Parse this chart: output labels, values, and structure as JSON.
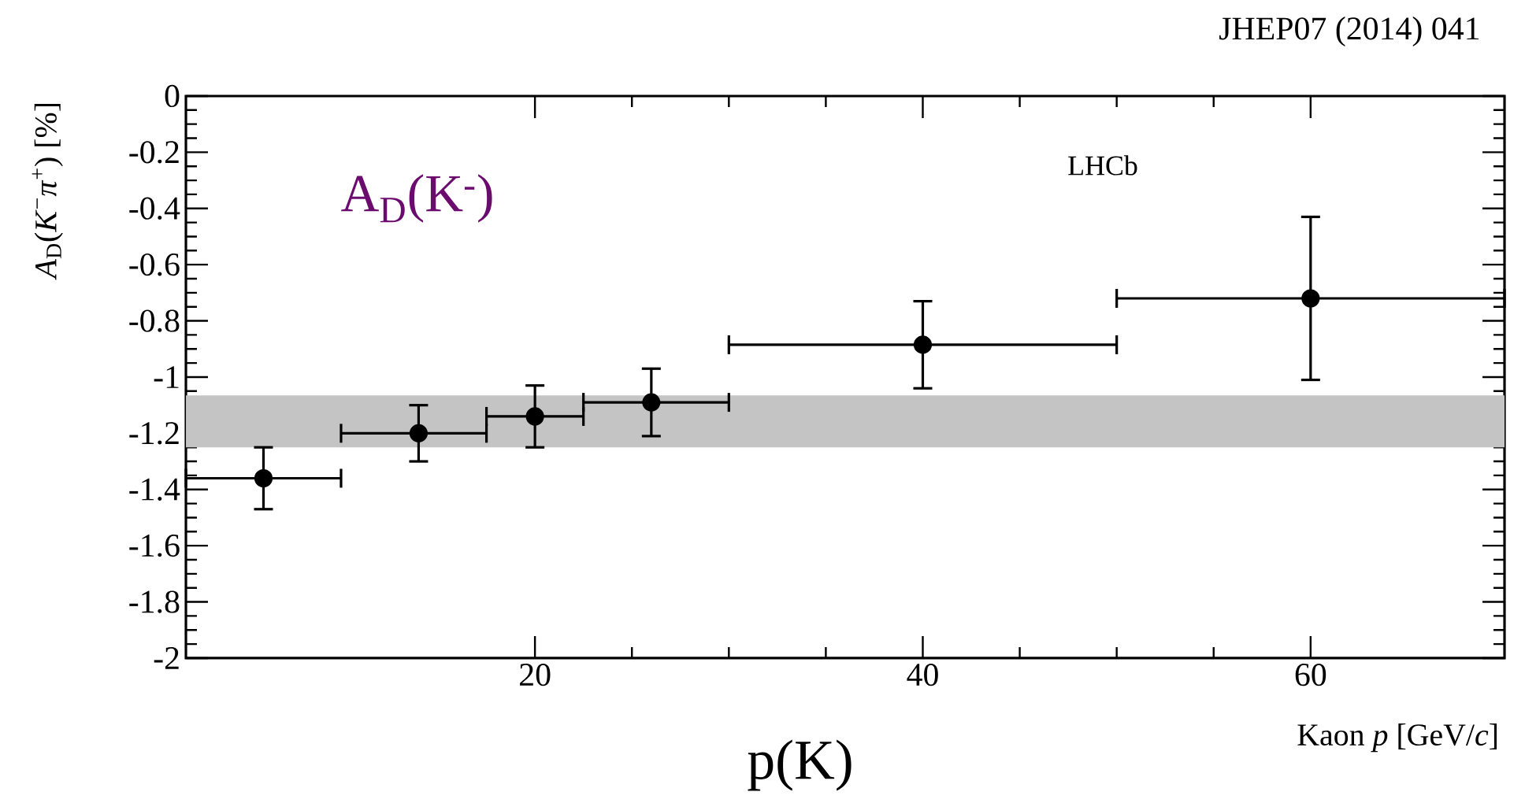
{
  "chart_data": {
    "type": "scatter",
    "x": [
      6,
      14,
      20,
      26,
      40,
      60
    ],
    "values": [
      -1.36,
      -1.2,
      -1.14,
      -1.09,
      -0.885,
      -0.72
    ],
    "errors": [
      0.11,
      0.1,
      0.11,
      0.12,
      0.155,
      0.29
    ],
    "xerrors": [
      [
        2,
        10
      ],
      [
        10,
        17.5
      ],
      [
        17.5,
        22.5
      ],
      [
        22.5,
        30
      ],
      [
        30,
        50
      ],
      [
        50,
        70
      ]
    ],
    "color": "#000000",
    "marker": "circle",
    "xlim": [
      2,
      70
    ],
    "ylim": [
      -2,
      0
    ],
    "xticks": [
      20,
      40,
      60
    ],
    "yticks": [
      0,
      -0.2,
      -0.4,
      -0.6,
      -0.8,
      -1,
      -1.2,
      -1.4,
      -1.6,
      -1.8,
      -2
    ],
    "xlabel": "Kaon *p* [GeV/*c*]",
    "ylabel": "*A*$_{D}$(*K*$^{−}$*π*$^{+}$) [%]",
    "bands": [
      {
        "axis": "y",
        "from": -1.25,
        "to": -1.065,
        "color": "#c4c4c4"
      }
    ],
    "annotations": [
      "JHEP07 (2014) 041",
      "LHCb",
      "A$_{D}$(K$^{-}$)",
      "p(K)"
    ],
    "grid": false
  }
}
